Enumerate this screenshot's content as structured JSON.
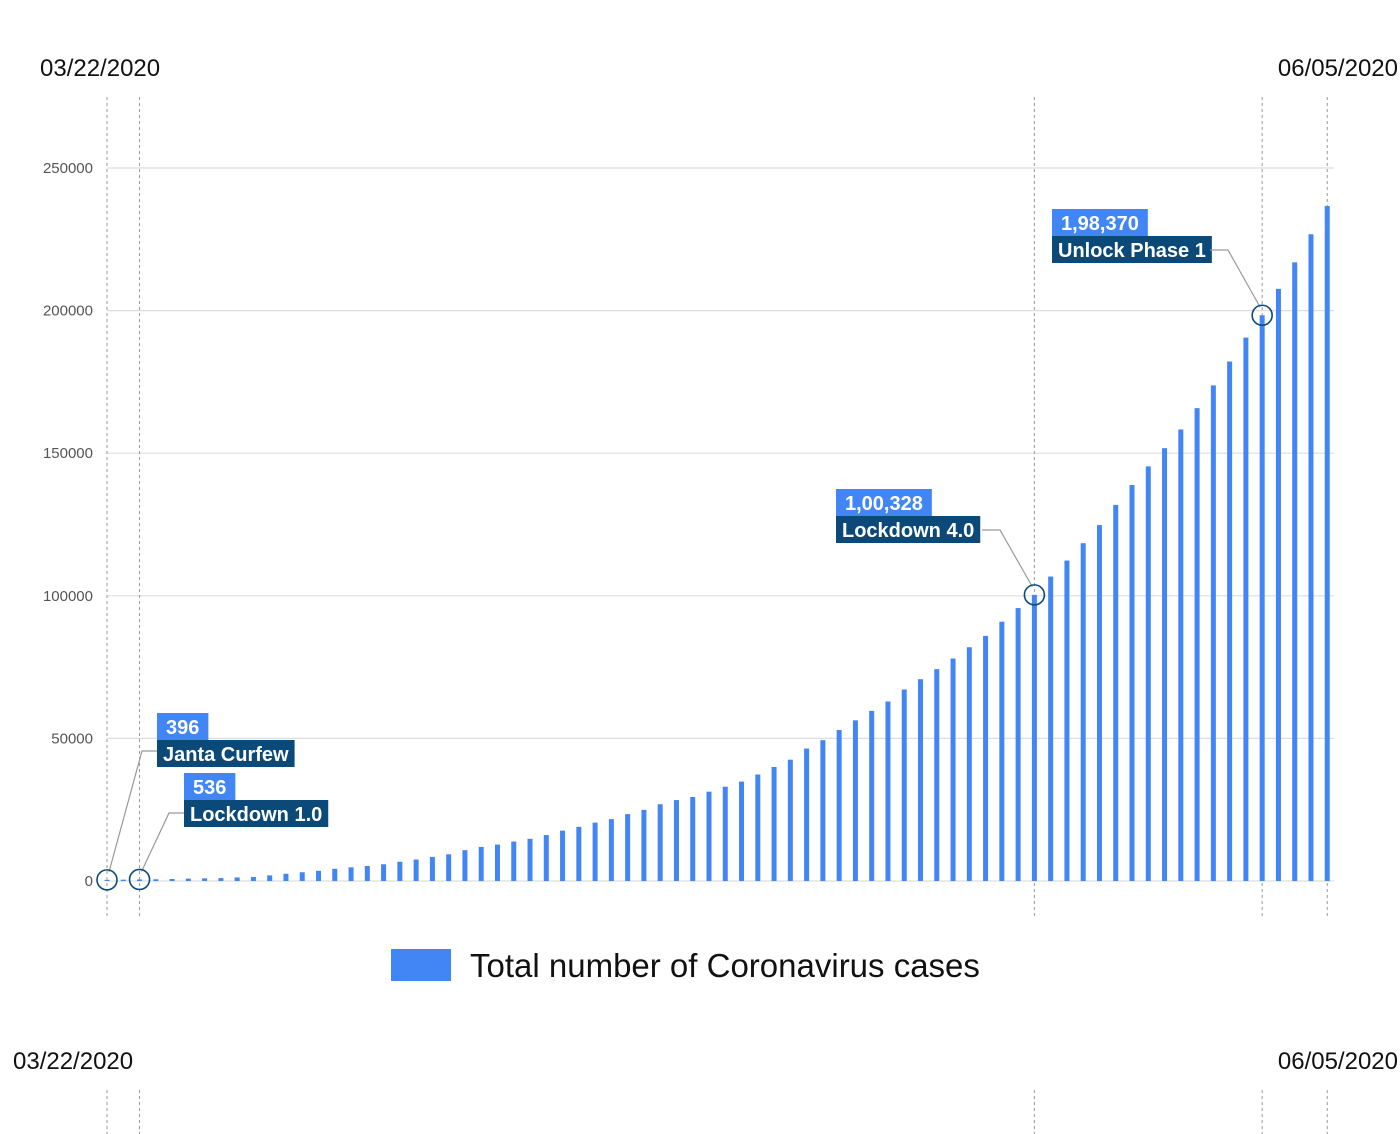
{
  "colors": {
    "bar": "#4285f4",
    "annotation_value_bg": "#4285f4",
    "annotation_name_bg": "#0b4a78",
    "gridline": "#dddddd",
    "marker_line": "#999999",
    "marker_circle": "#0b4a78"
  },
  "top_dates": {
    "start": "03/22/2020",
    "end": "06/05/2020"
  },
  "bottom_dates": {
    "start": "03/22/2020",
    "end": "06/05/2020"
  },
  "legend": {
    "label": "Total number of Coronavirus cases"
  },
  "chart_data": {
    "type": "bar",
    "x_start": "2020-03-22",
    "x_end": "2020-06-05",
    "ylim": [
      0,
      250000
    ],
    "yticks": [
      0,
      50000,
      100000,
      150000,
      200000,
      250000
    ],
    "ytick_labels": [
      "0",
      "50000",
      "100000",
      "150000",
      "200000",
      "250000"
    ],
    "grid": true,
    "legend_position": "bottom-center",
    "series": [
      {
        "name": "Total number of Coronavirus cases",
        "values": [
          396,
          470,
          536,
          606,
          694,
          834,
          918,
          1024,
          1251,
          1397,
          1965,
          2543,
          3072,
          3577,
          4281,
          4789,
          5274,
          5865,
          6761,
          7529,
          8447,
          9352,
          10815,
          11933,
          12759,
          13835,
          14792,
          16116,
          17656,
          18985,
          20471,
          21700,
          23452,
          24942,
          26917,
          28380,
          29451,
          31324,
          33062,
          34863,
          37336,
          39980,
          42533,
          46433,
          49391,
          52952,
          56342,
          59662,
          62939,
          67152,
          70756,
          74281,
          78003,
          81970,
          85940,
          90927,
          95698,
          100328,
          106750,
          112359,
          118447,
          124794,
          131868,
          138845,
          145380,
          151767,
          158333,
          165799,
          173763,
          182143,
          190535,
          198370,
          207615,
          216919,
          226770,
          236657
        ]
      }
    ],
    "annotations": [
      {
        "date": "2020-03-22",
        "value": 396,
        "value_label": "396",
        "name": "Janta Curfew"
      },
      {
        "date": "2020-03-24",
        "value": 536,
        "value_label": "536",
        "name": "Lockdown 1.0"
      },
      {
        "date": "2020-05-18",
        "value": 100328,
        "value_label": "1,00,328",
        "name": "Lockdown 4.0"
      },
      {
        "date": "2020-06-01",
        "value": 198370,
        "value_label": "1,98,370",
        "name": "Unlock Phase 1"
      }
    ]
  }
}
